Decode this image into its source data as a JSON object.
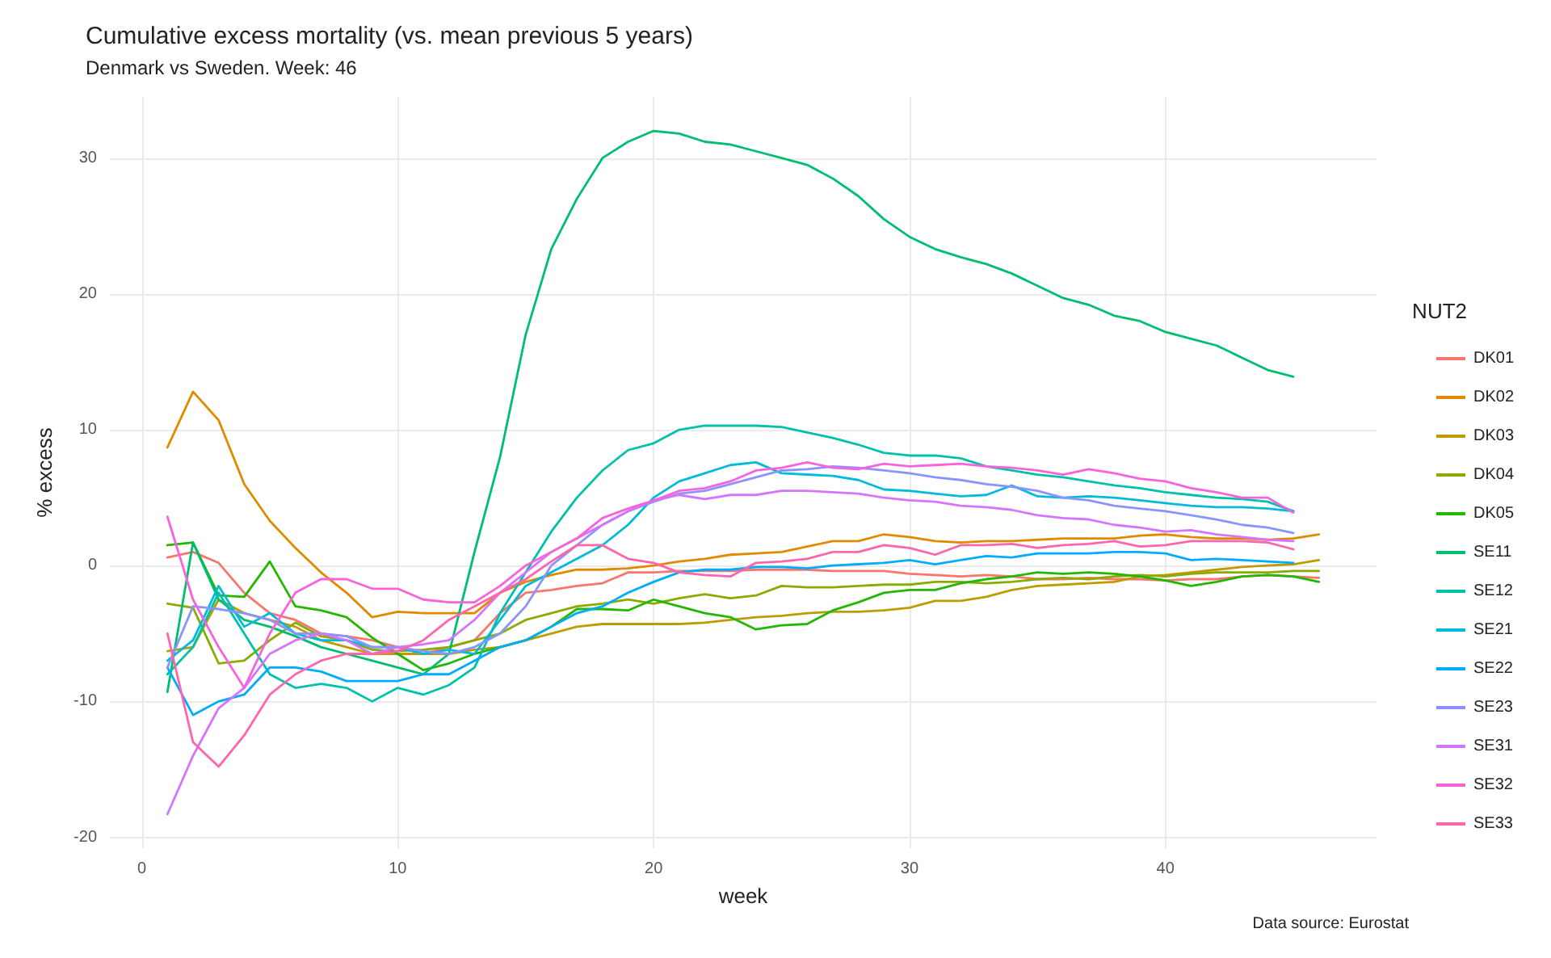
{
  "chart_data": {
    "type": "line",
    "title": "Cumulative excess mortality (vs. mean previous 5 years)",
    "subtitle": "Denmark vs Sweden. Week: 46",
    "xlabel": "week",
    "ylabel": "% excess",
    "legend_title": "NUT2",
    "legend": "right",
    "grid": true,
    "marker": "none",
    "line_style": "solid",
    "x": [
      1,
      2,
      3,
      4,
      5,
      6,
      7,
      8,
      9,
      10,
      11,
      12,
      13,
      14,
      15,
      16,
      17,
      18,
      19,
      20,
      21,
      22,
      23,
      24,
      25,
      26,
      27,
      28,
      29,
      30,
      31,
      32,
      33,
      34,
      35,
      36,
      37,
      38,
      39,
      40,
      41,
      42,
      43,
      44,
      45,
      46
    ],
    "xlim": [
      -1.25,
      48.25
    ],
    "xticks": [
      0,
      10,
      20,
      30,
      40
    ],
    "ylim": [
      -20.8,
      34.5
    ],
    "yticks": [
      -20,
      -10,
      0,
      10,
      20,
      30
    ],
    "annotations": [
      "Data source: Eurostat"
    ],
    "series": [
      {
        "name": "DK01",
        "color": "#f8766d",
        "values": [
          0.6,
          1.0,
          0.2,
          -2,
          -3.5,
          -4,
          -5,
          -5.2,
          -5.5,
          -6,
          -6.5,
          -6,
          -5.5,
          -3.5,
          -2,
          -1.8,
          -1.5,
          -1.3,
          -0.5,
          -0.5,
          -0.4,
          -0.4,
          -0.4,
          -0.3,
          -0.3,
          -0.3,
          -0.4,
          -0.4,
          -0.4,
          -0.6,
          -0.7,
          -0.8,
          -0.7,
          -0.8,
          -1.0,
          -1.0,
          -0.9,
          -1.0,
          -1.0,
          -1.1,
          -1.0,
          -1.0,
          -0.8,
          -0.7,
          -0.8,
          -0.9
        ]
      },
      {
        "name": "DK02",
        "color": "#e18a00",
        "values": [
          8.7,
          12.8,
          10.7,
          6,
          3.3,
          1.3,
          -0.5,
          -2,
          -3.8,
          -3.4,
          -3.5,
          -3.5,
          -3.5,
          -2,
          -1.2,
          -0.7,
          -0.3,
          -0.3,
          -0.2,
          0,
          0.3,
          0.5,
          0.8,
          0.9,
          1.0,
          1.4,
          1.8,
          1.8,
          2.3,
          2.1,
          1.8,
          1.7,
          1.8,
          1.8,
          1.9,
          2.0,
          2.0,
          2.0,
          2.2,
          2.3,
          2.1,
          2.0,
          2.0,
          1.9,
          2.0,
          2.3
        ]
      },
      {
        "name": "DK03",
        "color": "#be9c00",
        "values": [
          -6.3,
          -6,
          -2.5,
          -3.5,
          -4,
          -4.5,
          -5.5,
          -6,
          -6.5,
          -6.5,
          -6.5,
          -6.5,
          -6.2,
          -6,
          -5.5,
          -5,
          -4.5,
          -4.3,
          -4.3,
          -4.3,
          -4.3,
          -4.2,
          -4.0,
          -3.8,
          -3.7,
          -3.5,
          -3.4,
          -3.4,
          -3.3,
          -3.1,
          -2.6,
          -2.6,
          -2.3,
          -1.8,
          -1.5,
          -1.4,
          -1.3,
          -1.2,
          -0.8,
          -0.7,
          -0.5,
          -0.3,
          -0.1,
          0,
          0.1,
          0.4
        ]
      },
      {
        "name": "DK04",
        "color": "#8cab00",
        "values": [
          -2.8,
          -3.1,
          -7.2,
          -7,
          -5.5,
          -4.2,
          -5.2,
          -5.5,
          -6.2,
          -6.3,
          -6.2,
          -6.0,
          -5.5,
          -5,
          -4,
          -3.5,
          -3,
          -2.8,
          -2.5,
          -2.8,
          -2.4,
          -2.1,
          -2.4,
          -2.2,
          -1.5,
          -1.6,
          -1.6,
          -1.5,
          -1.4,
          -1.4,
          -1.2,
          -1.2,
          -1.3,
          -1.2,
          -1.0,
          -0.9,
          -1.0,
          -0.8,
          -0.7,
          -0.8,
          -0.6,
          -0.5,
          -0.5,
          -0.5,
          -0.4,
          -0.4
        ]
      },
      {
        "name": "DK05",
        "color": "#24b700",
        "values": [
          1.5,
          1.7,
          -2.2,
          -2.3,
          0.3,
          -3,
          -3.3,
          -3.8,
          -5.3,
          -6.5,
          -7.7,
          -7.2,
          -6.5,
          -6,
          -5.5,
          -4.5,
          -3.2,
          -3.2,
          -3.3,
          -2.5,
          -3,
          -3.5,
          -3.8,
          -4.7,
          -4.4,
          -4.3,
          -3.3,
          -2.7,
          -2.0,
          -1.8,
          -1.8,
          -1.3,
          -1.0,
          -0.8,
          -0.5,
          -0.6,
          -0.5,
          -0.6,
          -0.8,
          -1.1,
          -1.5,
          -1.2,
          -0.8,
          -0.7,
          -0.8,
          -1.2
        ]
      },
      {
        "name": "SE11",
        "color": "#00be70",
        "values": [
          -9.3,
          1.7,
          -2.5,
          -4,
          -4.5,
          -5.2,
          -6,
          -6.5,
          -7,
          -7.5,
          -8,
          -6.5,
          1,
          8,
          17,
          23.3,
          27,
          30,
          31.2,
          32,
          31.8,
          31.2,
          31,
          30.5,
          30,
          29.5,
          28.5,
          27.2,
          25.5,
          24.2,
          23.3,
          22.7,
          22.2,
          21.5,
          20.6,
          19.7,
          19.2,
          18.4,
          18,
          17.2,
          16.7,
          16.2,
          15.3,
          14.4,
          13.9,
          null
        ]
      },
      {
        "name": "SE12",
        "color": "#00c1ab",
        "values": [
          -8,
          -6,
          -2,
          -5,
          -8,
          -9,
          -8.7,
          -9,
          -10,
          -9,
          -9.5,
          -8.8,
          -7.5,
          -3.5,
          -0.5,
          2.5,
          5,
          7,
          8.5,
          9,
          10,
          10.3,
          10.3,
          10.3,
          10.2,
          9.8,
          9.4,
          8.9,
          8.3,
          8.1,
          8.1,
          7.9,
          7.3,
          7,
          6.7,
          6.5,
          6.2,
          5.9,
          5.7,
          5.4,
          5.2,
          5,
          4.9,
          4.7,
          4,
          null
        ]
      },
      {
        "name": "SE21",
        "color": "#00bbda",
        "values": [
          -7,
          -5.5,
          -1.5,
          -4.5,
          -3.5,
          -5,
          -5.5,
          -5.5,
          -6,
          -6,
          -6.5,
          -6.2,
          -6.5,
          -4,
          -1.5,
          -0.5,
          0.5,
          1.5,
          3,
          5,
          6.2,
          6.8,
          7.4,
          7.6,
          6.8,
          6.7,
          6.6,
          6.3,
          5.6,
          5.5,
          5.3,
          5.1,
          5.2,
          5.9,
          5.1,
          5.0,
          5.1,
          5.0,
          4.8,
          4.6,
          4.4,
          4.3,
          4.3,
          4.2,
          4.0,
          null
        ]
      },
      {
        "name": "SE22",
        "color": "#00acfc",
        "values": [
          -7.5,
          -11,
          -10,
          -9.5,
          -7.5,
          -7.5,
          -7.8,
          -8.5,
          -8.5,
          -8.5,
          -8,
          -8,
          -7,
          -6,
          -5.5,
          -4.5,
          -3.5,
          -3,
          -2,
          -1.2,
          -0.5,
          -0.3,
          -0.3,
          -0.1,
          -0.1,
          -0.2,
          0,
          0.1,
          0.2,
          0.4,
          0.1,
          0.4,
          0.7,
          0.6,
          0.9,
          0.9,
          0.9,
          1.0,
          1.0,
          0.9,
          0.4,
          0.5,
          0.4,
          0.3,
          0.2,
          null
        ]
      },
      {
        "name": "SE23",
        "color": "#8b93ff",
        "values": [
          -7.5,
          -3,
          -3.2,
          -3.5,
          -4,
          -5,
          -5,
          -5.2,
          -6,
          -6,
          -6.3,
          -6.5,
          -6,
          -5,
          -3,
          0,
          1.5,
          3,
          4,
          4.7,
          5.3,
          5.5,
          6,
          6.5,
          7,
          7.1,
          7.3,
          7.2,
          7,
          6.8,
          6.5,
          6.3,
          6,
          5.8,
          5.5,
          5,
          4.8,
          4.4,
          4.2,
          4,
          3.7,
          3.4,
          3.0,
          2.8,
          2.4,
          null
        ]
      },
      {
        "name": "SE31",
        "color": "#d575fe",
        "values": [
          -18.3,
          -14,
          -10.5,
          -9,
          -6.5,
          -5.5,
          -5,
          -5.5,
          -6.5,
          -6,
          -5.8,
          -5.5,
          -4,
          -2,
          -0.5,
          1,
          2,
          3,
          4,
          4.8,
          5.2,
          4.9,
          5.2,
          5.2,
          5.5,
          5.5,
          5.4,
          5.3,
          5.0,
          4.8,
          4.7,
          4.4,
          4.3,
          4.1,
          3.7,
          3.5,
          3.4,
          3.0,
          2.8,
          2.5,
          2.6,
          2.3,
          2.1,
          1.9,
          1.8,
          null
        ]
      },
      {
        "name": "SE32",
        "color": "#f962dd",
        "values": [
          3.6,
          -2.5,
          -6,
          -9,
          -5,
          -2,
          -1,
          -1,
          -1.7,
          -1.7,
          -2.5,
          -2.7,
          -2.7,
          -1.5,
          0,
          1,
          2,
          3.5,
          4.2,
          4.8,
          5.5,
          5.7,
          6.2,
          7.0,
          7.2,
          7.6,
          7.2,
          7.1,
          7.5,
          7.3,
          7.4,
          7.5,
          7.3,
          7.2,
          7.0,
          6.7,
          7.1,
          6.8,
          6.4,
          6.2,
          5.7,
          5.4,
          5.0,
          5.0,
          3.9,
          null
        ]
      },
      {
        "name": "SE33",
        "color": "#ff65ac",
        "values": [
          -5,
          -13,
          -14.8,
          -12.5,
          -9.5,
          -8,
          -7,
          -6.5,
          -6.5,
          -6.3,
          -5.5,
          -4,
          -3,
          -2,
          -1,
          0.3,
          1.5,
          1.5,
          0.5,
          0.2,
          -0.5,
          -0.7,
          -0.8,
          0.2,
          0.3,
          0.5,
          1.0,
          1.0,
          1.5,
          1.3,
          0.8,
          1.5,
          1.5,
          1.6,
          1.3,
          1.5,
          1.6,
          1.8,
          1.4,
          1.5,
          1.8,
          1.8,
          1.8,
          1.7,
          1.2,
          null
        ]
      }
    ]
  }
}
